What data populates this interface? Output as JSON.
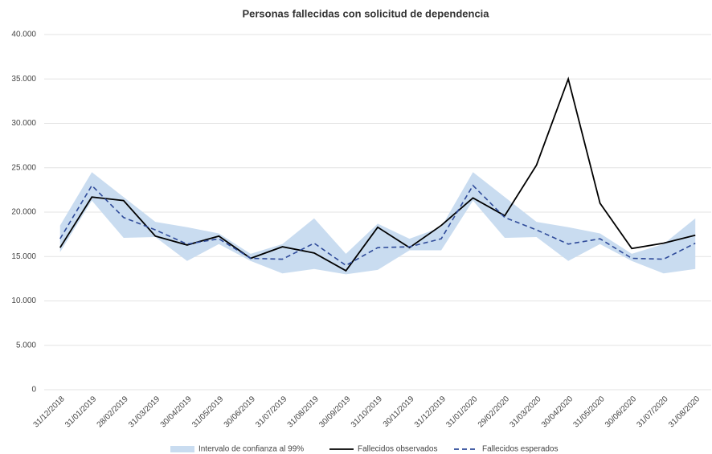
{
  "chart_data": {
    "type": "line",
    "title": "Personas fallecidas con solicitud de dependencia",
    "categories": [
      "31/12/2018",
      "31/01/2019",
      "28/02/2019",
      "31/03/2019",
      "30/04/2019",
      "31/05/2019",
      "30/06/2019",
      "31/07/2019",
      "31/08/2019",
      "30/09/2019",
      "31/10/2019",
      "30/11/2019",
      "31/12/2019",
      "31/01/2020",
      "29/02/2020",
      "31/03/2020",
      "30/04/2020",
      "31/05/2020",
      "30/06/2020",
      "31/07/2020",
      "31/08/2020"
    ],
    "band": {
      "name": "Intervalo de confianza al 99%",
      "color": "#c9dcf0",
      "upper": [
        18500,
        24500,
        21700,
        18900,
        18300,
        17600,
        15300,
        16400,
        19300,
        15300,
        18700,
        17000,
        18300,
        24500,
        21700,
        18900,
        18300,
        17600,
        15300,
        16400,
        19300
      ],
      "lower": [
        15500,
        21300,
        17100,
        17200,
        14500,
        16400,
        14500,
        13100,
        13600,
        13000,
        13500,
        15700,
        15700,
        21300,
        17100,
        17200,
        14500,
        16400,
        14500,
        13100,
        13600
      ]
    },
    "series": [
      {
        "name": "Fallecidos observados",
        "color": "#000000",
        "dash": false,
        "values": [
          16000,
          21700,
          21300,
          17300,
          16300,
          17300,
          14800,
          16100,
          15400,
          13400,
          18300,
          16000,
          18500,
          21600,
          19600,
          25300,
          35000,
          21000,
          15900,
          16500,
          17400
        ]
      },
      {
        "name": "Fallecidos esperados",
        "color": "#2f4b9a",
        "dash": true,
        "values": [
          17000,
          23000,
          19400,
          18000,
          16400,
          17000,
          14800,
          14700,
          16500,
          14000,
          16000,
          16100,
          17000,
          23000,
          19400,
          18000,
          16400,
          17000,
          14800,
          14700,
          16500
        ]
      }
    ],
    "ylim": [
      0,
      40000
    ],
    "yticks": [
      0,
      {
        "value": 5000,
        "label": "5.000"
      },
      {
        "value": 10000,
        "label": "10.000"
      },
      {
        "value": 15000,
        "label": "15.000"
      },
      {
        "value": 20000,
        "label": "20.000"
      },
      {
        "value": 25000,
        "label": "25.000"
      },
      {
        "value": 30000,
        "label": "30.000"
      },
      {
        "value": 35000,
        "label": "35.000"
      },
      {
        "value": 40000,
        "label": "40.000"
      }
    ],
    "grid": true,
    "legend": "bottom"
  }
}
